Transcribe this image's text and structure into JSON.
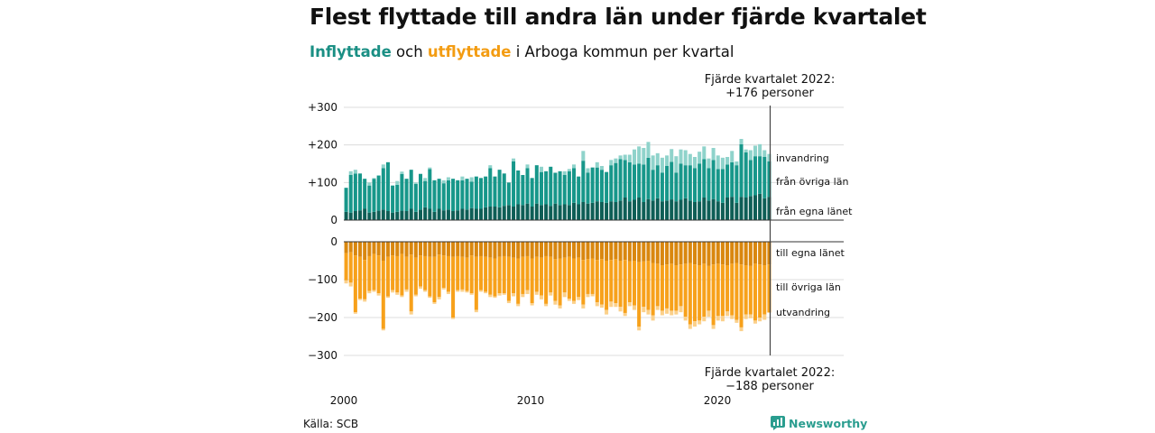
{
  "title": "Flest flyttade till andra län under fjärde kvartalet",
  "subtitle": {
    "in_word": "Inflyttade",
    "and_word": " och ",
    "out_word": "utflyttade",
    "rest": " i Arboga kommun per kvartal"
  },
  "source": "Källa: SCB",
  "brand": "Newsworthy",
  "colors": {
    "in_same": "#0e5e56",
    "in_other": "#17978a",
    "in_immig": "#8fd3cb",
    "out_same": "#d9870f",
    "out_other": "#f7a11b",
    "out_emig": "#fbd08a",
    "grid": "#dcdcdc",
    "brand": "#2a9d8f"
  },
  "chart_data": {
    "type": "bar",
    "stacked": true,
    "x_start": "2000 Q1",
    "x_end": "2022 Q4",
    "xticks": [
      "2000",
      "2010",
      "2020"
    ],
    "yticks_top": [
      "+300",
      "+200",
      "+100",
      "0"
    ],
    "yticks_bottom": [
      "0",
      "−100",
      "−200",
      "−300"
    ],
    "ylim_top": [
      0,
      300
    ],
    "ylim_bottom": [
      -300,
      0
    ],
    "grid": true,
    "series_in": [
      {
        "name": "från egna länet",
        "values": [
          22,
          20,
          24,
          26,
          30,
          20,
          22,
          25,
          28,
          24,
          20,
          22,
          25,
          24,
          30,
          22,
          28,
          34,
          30,
          22,
          30,
          26,
          28,
          24,
          26,
          30,
          28,
          32,
          30,
          30,
          34,
          36,
          36,
          34,
          38,
          40,
          36,
          42,
          40,
          44,
          36,
          44,
          40,
          42,
          38,
          44,
          40,
          42,
          40,
          46,
          42,
          48,
          44,
          46,
          50,
          48,
          46,
          50,
          48,
          52,
          60,
          50,
          54,
          60,
          48,
          56,
          52,
          58,
          50,
          52,
          55,
          50,
          54,
          58,
          52,
          48,
          50,
          60,
          52,
          56,
          50,
          46,
          60,
          62,
          46,
          62,
          60,
          64,
          66,
          70,
          58,
          62
        ]
      },
      {
        "name": "från övriga län",
        "values": [
          64,
          100,
          100,
          98,
          80,
          72,
          88,
          93,
          110,
          130,
          72,
          72,
          98,
          86,
          104,
          74,
          95,
          70,
          106,
          84,
          80,
          72,
          78,
          86,
          80,
          76,
          82,
          70,
          86,
          82,
          82,
          102,
          80,
          100,
          86,
          60,
          120,
          90,
          80,
          94,
          76,
          102,
          88,
          88,
          104,
          82,
          90,
          78,
          90,
          92,
          74,
          110,
          82,
          94,
          90,
          86,
          82,
          96,
          104,
          110,
          100,
          104,
          94,
          90,
          100,
          110,
          82,
          88,
          76,
          92,
          100,
          76,
          96,
          88,
          94,
          90,
          100,
          102,
          86,
          104,
          86,
          90,
          88,
          92,
          100,
          140,
          120,
          96,
          104,
          100,
          110,
          94
        ]
      },
      {
        "name": "invandring",
        "values": [
          0,
          10,
          10,
          0,
          0,
          8,
          2,
          2,
          10,
          0,
          0,
          10,
          6,
          0,
          0,
          4,
          0,
          8,
          4,
          0,
          0,
          8,
          8,
          0,
          0,
          10,
          0,
          12,
          0,
          0,
          0,
          8,
          0,
          0,
          0,
          0,
          8,
          0,
          0,
          10,
          0,
          0,
          14,
          0,
          0,
          0,
          0,
          10,
          6,
          10,
          0,
          26,
          12,
          0,
          14,
          10,
          0,
          14,
          12,
          10,
          14,
          20,
          40,
          46,
          44,
          42,
          38,
          32,
          40,
          28,
          34,
          44,
          38,
          40,
          30,
          30,
          32,
          34,
          26,
          32,
          36,
          30,
          20,
          30,
          10,
          14,
          8,
          26,
          28,
          32,
          18,
          20
        ]
      }
    ],
    "series_out": [
      {
        "name": "till egna länet",
        "values": [
          -30,
          -28,
          -36,
          -40,
          -48,
          -38,
          -32,
          -36,
          -50,
          -40,
          -36,
          -38,
          -32,
          -40,
          -34,
          -42,
          -36,
          -38,
          -40,
          -40,
          -34,
          -36,
          -38,
          -40,
          -38,
          -40,
          -42,
          -36,
          -40,
          -38,
          -40,
          -42,
          -44,
          -40,
          -38,
          -40,
          -42,
          -44,
          -40,
          -38,
          -44,
          -40,
          -42,
          -38,
          -40,
          -46,
          -44,
          -42,
          -40,
          -44,
          -42,
          -48,
          -46,
          -44,
          -48,
          -46,
          -50,
          -48,
          -46,
          -50,
          -48,
          -52,
          -50,
          -54,
          -52,
          -50,
          -56,
          -58,
          -62,
          -60,
          -58,
          -62,
          -60,
          -58,
          -56,
          -60,
          -62,
          -58,
          -64,
          -60,
          -58,
          -60,
          -62,
          -58,
          -56,
          -60,
          -62,
          -64,
          -58,
          -60,
          -62,
          -60
        ]
      },
      {
        "name": "till övriga län",
        "values": [
          -72,
          -80,
          -150,
          -110,
          -104,
          -92,
          -96,
          -100,
          -180,
          -104,
          -92,
          -96,
          -110,
          -86,
          -150,
          -98,
          -82,
          -90,
          -104,
          -120,
          -112,
          -86,
          -94,
          -160,
          -90,
          -86,
          -88,
          -100,
          -140,
          -90,
          -92,
          -98,
          -100,
          -96,
          -98,
          -116,
          -94,
          -120,
          -98,
          -90,
          -118,
          -92,
          -100,
          -126,
          -94,
          -110,
          -124,
          -92,
          -110,
          -112,
          -104,
          -118,
          -92,
          -94,
          -112,
          -120,
          -130,
          -110,
          -116,
          -122,
          -140,
          -108,
          -118,
          -170,
          -120,
          -130,
          -138,
          -112,
          -120,
          -116,
          -124,
          -120,
          -110,
          -140,
          -162,
          -150,
          -146,
          -140,
          -118,
          -160,
          -138,
          -136,
          -122,
          -136,
          -150,
          -166,
          -130,
          -128,
          -150,
          -140,
          -130,
          -126
        ]
      },
      {
        "name": "utvandring",
        "values": [
          -8,
          -10,
          -4,
          -4,
          -6,
          -6,
          -4,
          -6,
          -4,
          -4,
          -6,
          -6,
          -4,
          -6,
          -8,
          -4,
          -6,
          -4,
          -4,
          -4,
          -6,
          -4,
          -6,
          -4,
          -4,
          -6,
          -4,
          -4,
          -6,
          -4,
          -4,
          -6,
          -4,
          -6,
          -4,
          -6,
          -8,
          -6,
          -8,
          -10,
          -6,
          -8,
          -10,
          -6,
          -8,
          -10,
          -8,
          -12,
          -6,
          -8,
          -8,
          -10,
          -8,
          -6,
          -10,
          -8,
          -12,
          -14,
          -10,
          -12,
          -8,
          -10,
          -12,
          -10,
          -14,
          -12,
          -14,
          -10,
          -12,
          -14,
          -12,
          -10,
          -16,
          -10,
          -12,
          -14,
          -10,
          -12,
          -16,
          -10,
          -12,
          -14,
          -12,
          -10,
          -8,
          -10,
          -12,
          -10,
          -8,
          -10,
          -14,
          -2
        ]
      }
    ],
    "labels_in": [
      "invandring",
      "från övriga län",
      "från egna länet"
    ],
    "labels_out": [
      "till egna länet",
      "till övriga län",
      "utvandring"
    ],
    "annotation_top": {
      "line1": "Fjärde kvartalet 2022:",
      "line2": "+176 personer"
    },
    "annotation_bottom": {
      "line1": "Fjärde kvartalet 2022:",
      "line2": "−188 personer"
    }
  }
}
